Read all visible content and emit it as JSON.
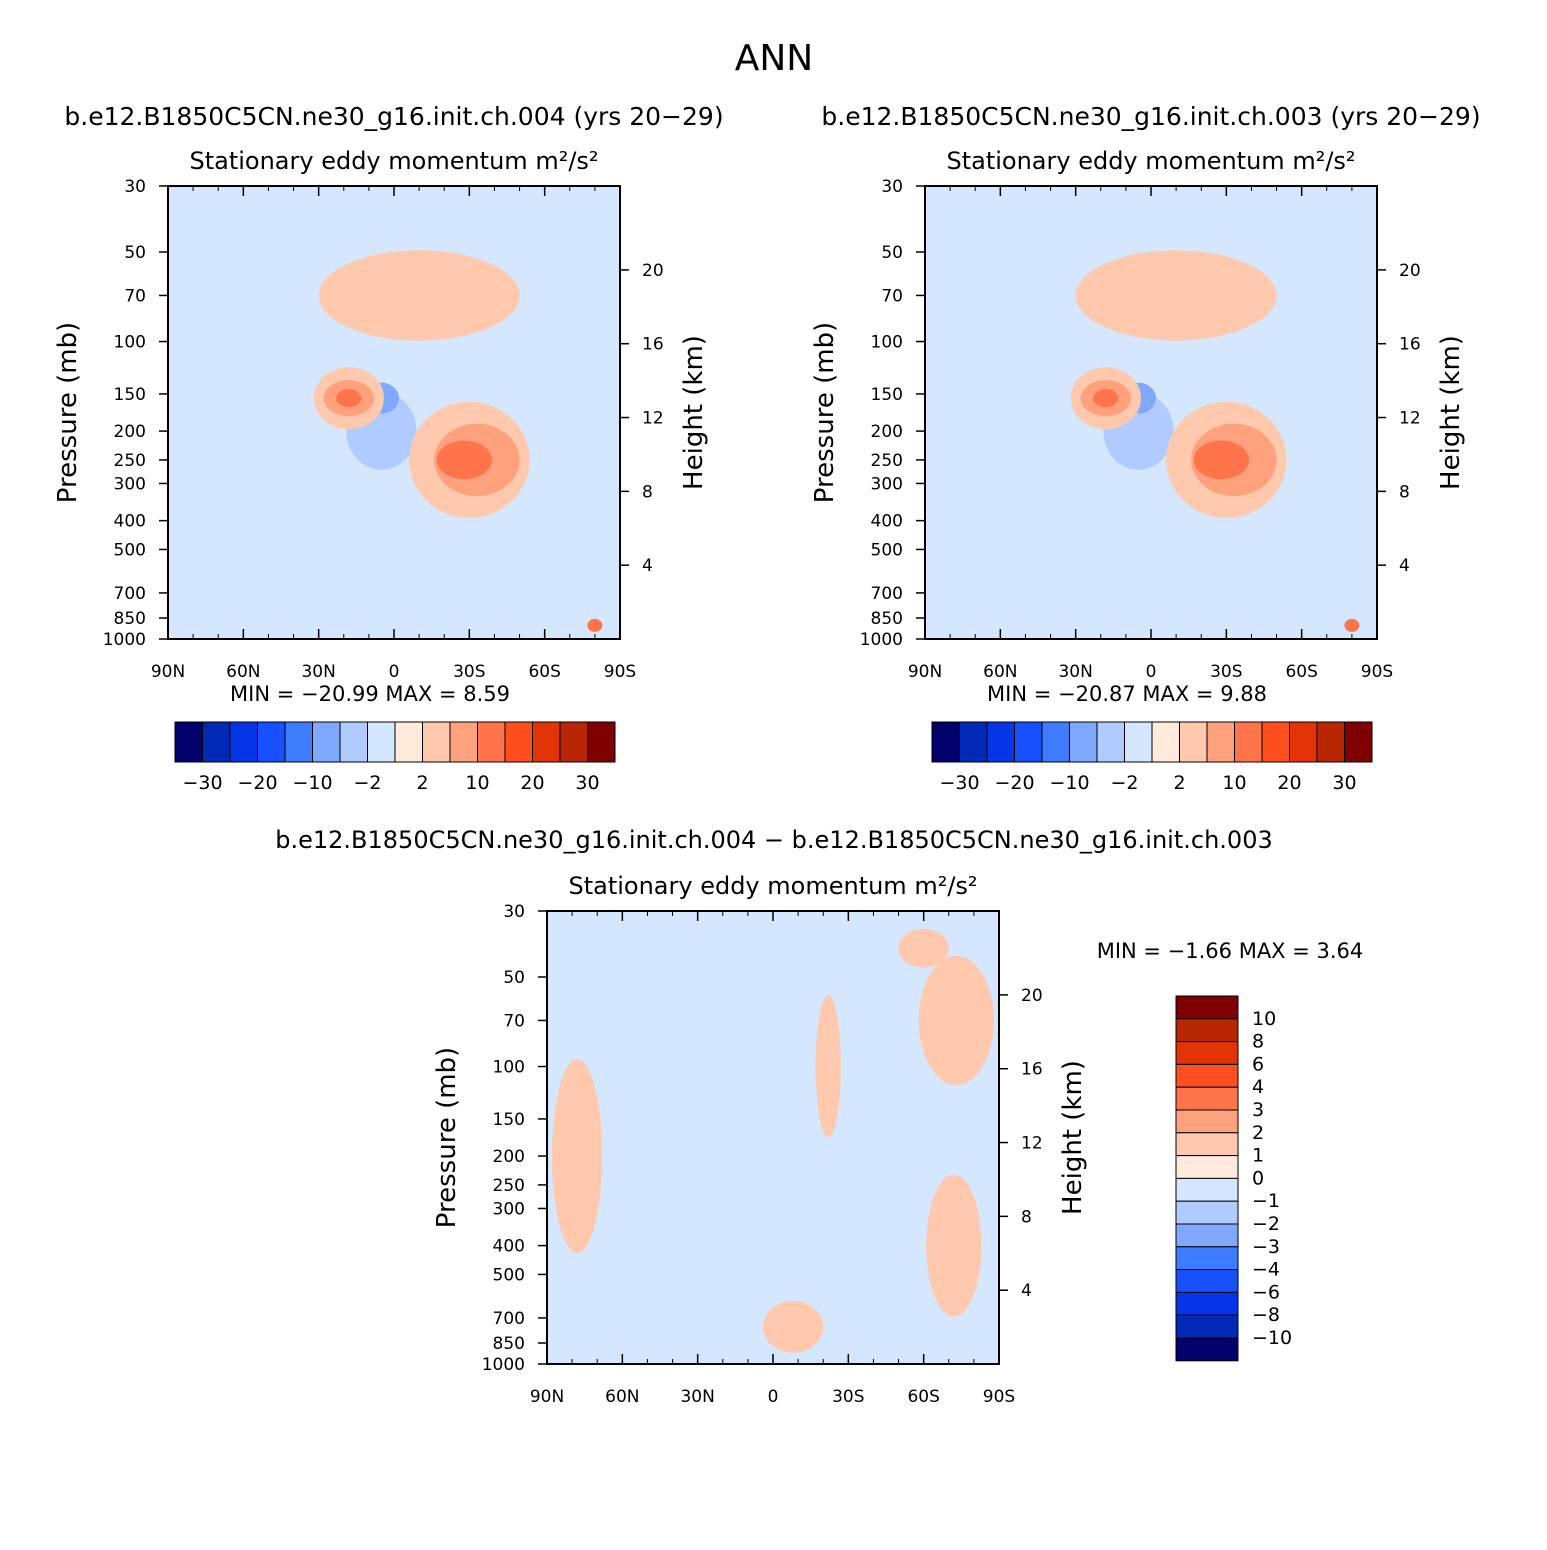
{
  "figure_title": "ANN",
  "diff_title": "b.e12.B1850C5CN.ne30_g16.init.ch.004 − b.e12.B1850C5CN.ne30_g16.init.ch.003",
  "chart_data": [
    {
      "type": "heatmap",
      "case_title": "b.e12.B1850C5CN.ne30_g16.init.ch.004 (yrs 20−29)",
      "title": "Stationary eddy momentum",
      "units": "m²/s²",
      "xlabel": "",
      "ylabel": "Pressure (mb)",
      "ylabel_right": "Height (km)",
      "x_ticklabels": [
        "90N",
        "60N",
        "30N",
        "0",
        "30S",
        "60S",
        "90S"
      ],
      "y_ticks": [
        30,
        50,
        70,
        100,
        150,
        200,
        250,
        300,
        400,
        500,
        700,
        850,
        1000
      ],
      "y_right_ticks": [
        4,
        8,
        12,
        16,
        20
      ],
      "ylim": [
        1000,
        30
      ],
      "y_scale": "log",
      "stats_text": "MIN = −20.99   MAX =    8.59",
      "min": -20.99,
      "max": 8.59,
      "contour_levels": [
        -30,
        -25,
        -20,
        -15,
        -10,
        -5,
        -2,
        0,
        2,
        5,
        10,
        15,
        20,
        25,
        30
      ],
      "colorbar_labels": [
        "−30",
        "−20",
        "−10",
        "−2",
        "2",
        "10",
        "20",
        "30"
      ],
      "regions": [
        {
          "lat": -60,
          "p": 180,
          "dlat": 18,
          "dlogp": 0.62,
          "level": -2
        },
        {
          "lat": 5,
          "p": 200,
          "dlat": 14,
          "dlogp": 0.3,
          "level": -5
        },
        {
          "lat": 5,
          "p": 155,
          "dlat": 7,
          "dlogp": 0.12,
          "level": -10
        },
        {
          "lat": 40,
          "p": 45,
          "dlat": 18,
          "dlogp": 0.28,
          "level": -2
        },
        {
          "lat": -30,
          "p": 250,
          "dlat": 24,
          "dlogp": 0.45,
          "level": 2
        },
        {
          "lat": -33,
          "p": 250,
          "dlat": 17,
          "dlogp": 0.28,
          "level": 5
        },
        {
          "lat": -28,
          "p": 250,
          "dlat": 11,
          "dlogp": 0.15,
          "level": 10
        },
        {
          "lat": 18,
          "p": 155,
          "dlat": 14,
          "dlogp": 0.24,
          "level": 2
        },
        {
          "lat": 18,
          "p": 155,
          "dlat": 10,
          "dlogp": 0.14,
          "level": 5
        },
        {
          "lat": 18,
          "p": 155,
          "dlat": 5,
          "dlogp": 0.07,
          "level": 10
        },
        {
          "lat": -10,
          "p": 70,
          "dlat": 40,
          "dlogp": 0.35,
          "level": 2
        },
        {
          "lat": -80,
          "p": 900,
          "dlat": 3,
          "dlogp": 0.05,
          "level": 10
        }
      ]
    },
    {
      "type": "heatmap",
      "case_title": "b.e12.B1850C5CN.ne30_g16.init.ch.003 (yrs 20−29)",
      "title": "Stationary eddy momentum",
      "units": "m²/s²",
      "xlabel": "",
      "ylabel": "Pressure (mb)",
      "ylabel_right": "Height (km)",
      "x_ticklabels": [
        "90N",
        "60N",
        "30N",
        "0",
        "30S",
        "60S",
        "90S"
      ],
      "y_ticks": [
        30,
        50,
        70,
        100,
        150,
        200,
        250,
        300,
        400,
        500,
        700,
        850,
        1000
      ],
      "y_right_ticks": [
        4,
        8,
        12,
        16,
        20
      ],
      "ylim": [
        1000,
        30
      ],
      "y_scale": "log",
      "stats_text": "MIN = −20.87   MAX =    9.88",
      "min": -20.87,
      "max": 9.88,
      "contour_levels": [
        -30,
        -25,
        -20,
        -15,
        -10,
        -5,
        -2,
        0,
        2,
        5,
        10,
        15,
        20,
        25,
        30
      ],
      "colorbar_labels": [
        "−30",
        "−20",
        "−10",
        "−2",
        "2",
        "10",
        "20",
        "30"
      ],
      "regions": [
        {
          "lat": -62,
          "p": 180,
          "dlat": 17,
          "dlogp": 0.6,
          "level": -2
        },
        {
          "lat": 5,
          "p": 200,
          "dlat": 14,
          "dlogp": 0.3,
          "level": -5
        },
        {
          "lat": 5,
          "p": 155,
          "dlat": 7,
          "dlogp": 0.12,
          "level": -10
        },
        {
          "lat": 38,
          "p": 45,
          "dlat": 17,
          "dlogp": 0.28,
          "level": -2
        },
        {
          "lat": -30,
          "p": 250,
          "dlat": 24,
          "dlogp": 0.45,
          "level": 2
        },
        {
          "lat": -33,
          "p": 250,
          "dlat": 17,
          "dlogp": 0.28,
          "level": 5
        },
        {
          "lat": -28,
          "p": 250,
          "dlat": 11,
          "dlogp": 0.15,
          "level": 10
        },
        {
          "lat": 18,
          "p": 155,
          "dlat": 14,
          "dlogp": 0.24,
          "level": 2
        },
        {
          "lat": 18,
          "p": 155,
          "dlat": 10,
          "dlogp": 0.14,
          "level": 5
        },
        {
          "lat": 18,
          "p": 155,
          "dlat": 5,
          "dlogp": 0.07,
          "level": 10
        },
        {
          "lat": -10,
          "p": 70,
          "dlat": 40,
          "dlogp": 0.35,
          "level": 2
        },
        {
          "lat": 45,
          "p": 280,
          "dlat": 4,
          "dlogp": 0.2,
          "level": -2
        },
        {
          "lat": -80,
          "p": 900,
          "dlat": 3,
          "dlogp": 0.05,
          "level": 10
        }
      ]
    },
    {
      "type": "heatmap",
      "title": "Stationary eddy momentum",
      "units": "m²/s²",
      "xlabel": "",
      "ylabel": "Pressure (mb)",
      "ylabel_right": "Height (km)",
      "x_ticklabels": [
        "90N",
        "60N",
        "30N",
        "0",
        "30S",
        "60S",
        "90S"
      ],
      "y_ticks": [
        30,
        50,
        70,
        100,
        150,
        200,
        250,
        300,
        400,
        500,
        700,
        850,
        1000
      ],
      "y_right_ticks": [
        4,
        8,
        12,
        16,
        20
      ],
      "ylim": [
        1000,
        30
      ],
      "y_scale": "log",
      "stats_text": "MIN =   −1.66   MAX =    3.64",
      "min": -1.66,
      "max": 3.64,
      "contour_levels": [
        -10,
        -8,
        -6,
        -4,
        -3,
        -2,
        -1,
        0,
        1,
        2,
        3,
        4,
        6,
        8,
        10
      ],
      "colorbar_labels": [
        "10",
        "8",
        "6",
        "4",
        "3",
        "2",
        "1",
        "0",
        "−1",
        "−2",
        "−3",
        "−4",
        "−6",
        "−8",
        "−10"
      ],
      "regions": [
        {
          "lat": -73,
          "p": 70,
          "dlat": 15,
          "dlogp": 0.5,
          "level": 1
        },
        {
          "lat": -72,
          "p": 400,
          "dlat": 11,
          "dlogp": 0.55,
          "level": 1
        },
        {
          "lat": -22,
          "p": 100,
          "dlat": 5,
          "dlogp": 0.55,
          "level": 1
        },
        {
          "lat": 78,
          "p": 200,
          "dlat": 10,
          "dlogp": 0.75,
          "level": 1
        },
        {
          "lat": -8,
          "p": 750,
          "dlat": 12,
          "dlogp": 0.2,
          "level": 1
        },
        {
          "lat": 25,
          "p": 170,
          "dlat": 4,
          "dlogp": 0.25,
          "level": -1
        },
        {
          "lat": -5,
          "p": 150,
          "dlat": 3,
          "dlogp": 0.05,
          "level": -1
        },
        {
          "lat": -60,
          "p": 40,
          "dlat": 10,
          "dlogp": 0.15,
          "level": 1
        }
      ]
    }
  ],
  "colors": {
    "scale": [
      "#03006d",
      "#0229b5",
      "#0436e7",
      "#1650ff",
      "#3e7cff",
      "#7fa8ff",
      "#b0cbff",
      "#d5e6ff",
      "#ffeadc",
      "#ffc9ad",
      "#ffa17d",
      "#ff744b",
      "#ff4f1f",
      "#e33408",
      "#b82603",
      "#7f0000"
    ]
  }
}
